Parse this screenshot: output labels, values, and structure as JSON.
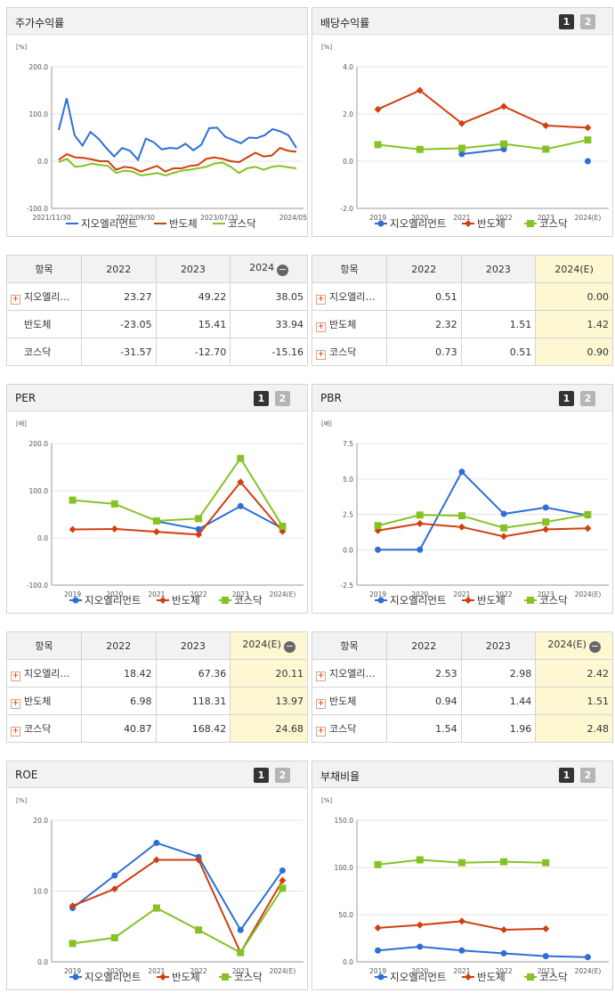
{
  "colors": {
    "s1": "#2d6fd6",
    "s2": "#d03f10",
    "s3": "#86c226"
  },
  "panels": [
    {
      "title": "주가수익률",
      "pager": [],
      "unit": "[%]",
      "yticks": [
        "200.0",
        "100.0",
        "0.0",
        "-100.0"
      ],
      "xticks": [
        "2021/11/30",
        "2022/09/30",
        "2023/07/31",
        "2024/05/3"
      ],
      "legend": [
        "지오엘리먼트",
        "반도체",
        "코스닥"
      ]
    },
    {
      "title": "배당수익률",
      "pager": [
        "1",
        "2"
      ],
      "unit": "[%]",
      "yticks": [
        "4.0",
        "2.0",
        "0.0",
        "-2.0"
      ],
      "xticks": [
        "2019",
        "2020",
        "2021",
        "2022",
        "2023",
        "2024(E)"
      ],
      "legend": [
        "지오엘리먼트",
        "반도체",
        "코스닥"
      ]
    },
    {
      "title": "PER",
      "pager": [
        "1",
        "2"
      ],
      "unit": "[배]",
      "yticks": [
        "200.0",
        "100.0",
        "0.0",
        "-100.0"
      ],
      "xticks": [
        "2019",
        "2020",
        "2021",
        "2022",
        "2023",
        "2024(E)"
      ],
      "legend": [
        "지오엘리먼트",
        "반도체",
        "코스닥"
      ]
    },
    {
      "title": "PBR",
      "pager": [
        "1",
        "2"
      ],
      "unit": "[배]",
      "yticks": [
        "7.5",
        "5.0",
        "2.5",
        "0.0",
        "-2.5"
      ],
      "xticks": [
        "2019",
        "2020",
        "2021",
        "2022",
        "2023",
        "2024(E)"
      ],
      "legend": [
        "지오엘리먼트",
        "반도체",
        "코스닥"
      ]
    },
    {
      "title": "ROE",
      "pager": [
        "1",
        "2"
      ],
      "unit": "[%]",
      "yticks": [
        "20.0",
        "10.0",
        "0.0"
      ],
      "xticks": [
        "2019",
        "2020",
        "2021",
        "2022",
        "2023",
        "2024(E)"
      ],
      "legend": [
        "지오엘리먼트",
        "반도체",
        "코스닥"
      ]
    },
    {
      "title": "부채비율",
      "pager": [
        "1",
        "2"
      ],
      "unit": "[%]",
      "yticks": [
        "150.0",
        "100.0",
        "50.0",
        "0.0"
      ],
      "xticks": [
        "2019",
        "2020",
        "2021",
        "2022",
        "2023",
        "2024(E)"
      ],
      "legend": [
        "지오엘리먼트",
        "반도체",
        "코스닥"
      ]
    }
  ],
  "tables": [
    {
      "header": [
        "항목",
        "2022",
        "2023",
        "2024"
      ],
      "minus": true,
      "rows": [
        {
          "name": "지오엘리…",
          "plus": true,
          "vals": [
            "23.27",
            "49.22",
            "38.05"
          ]
        },
        {
          "name": "반도체",
          "plus": false,
          "vals": [
            "-23.05",
            "15.41",
            "33.94"
          ]
        },
        {
          "name": "코스닥",
          "plus": false,
          "vals": [
            "-31.57",
            "-12.70",
            "-15.16"
          ]
        }
      ],
      "estCol": false
    },
    {
      "header": [
        "항목",
        "2022",
        "2023",
        "2024(E)"
      ],
      "minus": false,
      "rows": [
        {
          "name": "지오엘리…",
          "plus": true,
          "vals": [
            "0.51",
            "",
            "0.00"
          ]
        },
        {
          "name": "반도체",
          "plus": true,
          "vals": [
            "2.32",
            "1.51",
            "1.42"
          ]
        },
        {
          "name": "코스닥",
          "plus": true,
          "vals": [
            "0.73",
            "0.51",
            "0.90"
          ]
        }
      ],
      "estCol": true
    },
    {
      "header": [
        "항목",
        "2022",
        "2023",
        "2024(E)"
      ],
      "minus": true,
      "rows": [
        {
          "name": "지오엘리…",
          "plus": true,
          "vals": [
            "18.42",
            "67.36",
            "20.11"
          ]
        },
        {
          "name": "반도체",
          "plus": true,
          "vals": [
            "6.98",
            "118.31",
            "13.97"
          ]
        },
        {
          "name": "코스닥",
          "plus": true,
          "vals": [
            "40.87",
            "168.42",
            "24.68"
          ]
        }
      ],
      "estCol": true
    },
    {
      "header": [
        "항목",
        "2022",
        "2023",
        "2024(E)"
      ],
      "minus": true,
      "rows": [
        {
          "name": "지오엘리…",
          "plus": true,
          "vals": [
            "2.53",
            "2.98",
            "2.42"
          ]
        },
        {
          "name": "반도체",
          "plus": true,
          "vals": [
            "0.94",
            "1.44",
            "1.51"
          ]
        },
        {
          "name": "코스닥",
          "plus": true,
          "vals": [
            "1.54",
            "1.96",
            "2.48"
          ]
        }
      ],
      "estCol": true
    }
  ],
  "chart_data": [
    {
      "type": "line",
      "title": "주가수익률",
      "ylabel": "[%]",
      "ylim": [
        -100,
        200
      ],
      "x_ticks": [
        "2021/11/30",
        "2022/09/30",
        "2023/07/31",
        "2024/05/3"
      ],
      "series": [
        {
          "name": "지오엘리먼트",
          "values": [
            66,
            133,
            55,
            33,
            62,
            48,
            28,
            10,
            28,
            22,
            3,
            48,
            40,
            25,
            28,
            27,
            37,
            23,
            35,
            70,
            71,
            52,
            45,
            38,
            50,
            49,
            55,
            68,
            63,
            55,
            28
          ]
        },
        {
          "name": "반도체",
          "values": [
            3,
            15,
            8,
            7,
            4,
            0,
            0,
            -18,
            -12,
            -14,
            -22,
            -16,
            -10,
            -22,
            -15,
            -15,
            -10,
            -8,
            5,
            8,
            5,
            0,
            -2,
            8,
            18,
            10,
            12,
            28,
            22,
            20
          ]
        },
        {
          "name": "코스닥",
          "values": [
            -2,
            5,
            -12,
            -10,
            -5,
            -8,
            -10,
            -25,
            -20,
            -22,
            -30,
            -28,
            -25,
            -30,
            -25,
            -20,
            -18,
            -15,
            -12,
            -5,
            -3,
            -12,
            -25,
            -15,
            -12,
            -18,
            -12,
            -10,
            -13,
            -15
          ]
        }
      ]
    },
    {
      "type": "line",
      "title": "배당수익률",
      "ylabel": "[%]",
      "ylim": [
        -2,
        4
      ],
      "categories": [
        "2019",
        "2020",
        "2021",
        "2022",
        "2023",
        "2024(E)"
      ],
      "series": [
        {
          "name": "지오엘리먼트",
          "values": [
            null,
            null,
            0.3,
            0.51,
            null,
            0.0
          ]
        },
        {
          "name": "반도체",
          "values": [
            2.2,
            3.0,
            1.6,
            2.32,
            1.51,
            1.42
          ]
        },
        {
          "name": "코스닥",
          "values": [
            0.7,
            0.5,
            0.55,
            0.73,
            0.51,
            0.9
          ]
        }
      ]
    },
    {
      "type": "line",
      "title": "PER",
      "ylabel": "[배]",
      "ylim": [
        -100,
        200
      ],
      "categories": [
        "2019",
        "2020",
        "2021",
        "2022",
        "2023",
        "2024(E)"
      ],
      "series": [
        {
          "name": "지오엘리먼트",
          "values": [
            null,
            null,
            35,
            18.42,
            67.36,
            20.11
          ]
        },
        {
          "name": "반도체",
          "values": [
            18,
            19,
            13,
            6.98,
            118.31,
            13.97
          ]
        },
        {
          "name": "코스닥",
          "values": [
            80,
            72,
            36,
            40.87,
            168.42,
            24.68
          ]
        }
      ]
    },
    {
      "type": "line",
      "title": "PBR",
      "ylabel": "[배]",
      "ylim": [
        -2.5,
        7.5
      ],
      "categories": [
        "2019",
        "2020",
        "2021",
        "2022",
        "2023",
        "2024(E)"
      ],
      "series": [
        {
          "name": "지오엘리먼트",
          "values": [
            0.0,
            0.0,
            5.5,
            2.53,
            2.98,
            2.42
          ]
        },
        {
          "name": "반도체",
          "values": [
            1.35,
            1.85,
            1.6,
            0.94,
            1.44,
            1.51
          ]
        },
        {
          "name": "코스닥",
          "values": [
            1.7,
            2.45,
            2.4,
            1.54,
            1.96,
            2.48
          ]
        }
      ]
    },
    {
      "type": "line",
      "title": "ROE",
      "ylabel": "[%]",
      "ylim": [
        0,
        20
      ],
      "categories": [
        "2019",
        "2020",
        "2021",
        "2022",
        "2023",
        "2024(E)"
      ],
      "series": [
        {
          "name": "지오엘리먼트",
          "values": [
            7.6,
            12.2,
            16.8,
            14.8,
            4.5,
            12.9
          ]
        },
        {
          "name": "반도체",
          "values": [
            7.9,
            10.3,
            14.4,
            14.4,
            1.3,
            11.5
          ]
        },
        {
          "name": "코스닥",
          "values": [
            2.6,
            3.4,
            7.6,
            4.5,
            1.3,
            10.4
          ]
        }
      ]
    },
    {
      "type": "line",
      "title": "부채비율",
      "ylabel": "[%]",
      "ylim": [
        0,
        150
      ],
      "categories": [
        "2019",
        "2020",
        "2021",
        "2022",
        "2023",
        "2024(E)"
      ],
      "series": [
        {
          "name": "지오엘리먼트",
          "values": [
            12,
            16,
            12,
            9,
            6,
            5
          ]
        },
        {
          "name": "반도체",
          "values": [
            36,
            39,
            43,
            34,
            35,
            null
          ]
        },
        {
          "name": "코스닥",
          "values": [
            103,
            108,
            105,
            106,
            105,
            null
          ]
        }
      ]
    }
  ]
}
